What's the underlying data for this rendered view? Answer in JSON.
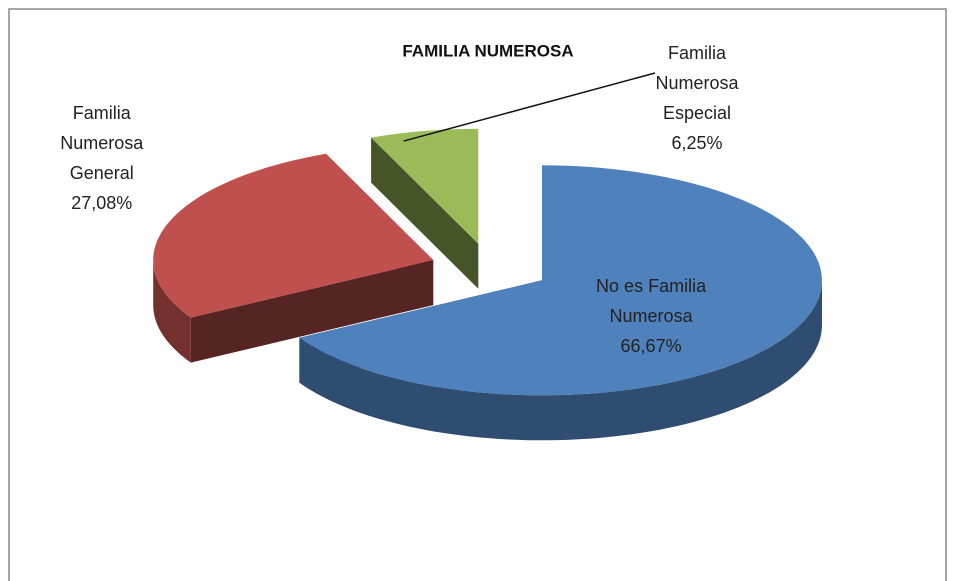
{
  "chart_data": {
    "type": "pie3d",
    "title": "FAMILIA NUMEROSA",
    "categories": [
      "No es Familia Numerosa",
      "Familia Numerosa General",
      "Familia Numerosa Especial"
    ],
    "values": [
      66.67,
      27.08,
      6.25
    ],
    "value_labels": [
      "66,67%",
      "27,08%",
      "6,25%"
    ],
    "colors": [
      "#4f81bd",
      "#c0504d",
      "#9bbb59"
    ]
  }
}
